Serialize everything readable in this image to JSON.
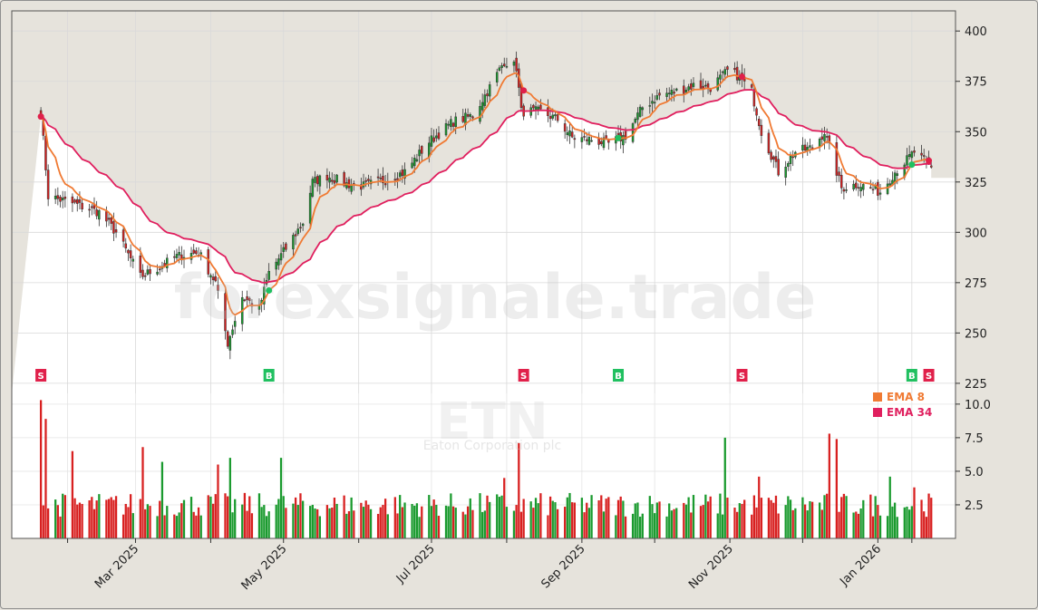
{
  "chart_data": {
    "type": "candlestick",
    "ticker": "ETN",
    "company": "Eaton Corporation plc",
    "watermark": "forexsignale.trade",
    "price_axis": {
      "ticks": [
        225,
        250,
        275,
        300,
        325,
        350,
        375,
        400
      ],
      "ylim": [
        220,
        410
      ]
    },
    "volume_axis": {
      "ticks": [
        "2.5",
        "5.0",
        "7.5",
        "10.0"
      ],
      "values": [
        2.5,
        5.0,
        7.5,
        10.0
      ],
      "ylim": [
        0,
        10.8
      ]
    },
    "x_labels": [
      {
        "label": "Mar 2025",
        "date": "2025-03-01"
      },
      {
        "label": "May 2025",
        "date": "2025-05-01"
      },
      {
        "label": "Jul 2025",
        "date": "2025-07-01"
      },
      {
        "label": "Sep 2025",
        "date": "2025-09-01"
      },
      {
        "label": "Nov 2025",
        "date": "2025-11-01"
      },
      {
        "label": "Jan 2026",
        "date": "2026-01-01"
      }
    ],
    "x_minor_dates": [
      "2025-02-01",
      "2025-04-01",
      "2025-06-01",
      "2025-08-01",
      "2025-10-01",
      "2025-12-01",
      "2026-01-15"
    ],
    "date_range": [
      "2025-01-21",
      "2026-01-23"
    ],
    "last_close": 332,
    "price_path": [
      [
        "2025-01-21",
        360
      ],
      [
        "2025-01-24",
        318
      ],
      [
        "2025-02-04",
        314
      ],
      [
        "2025-02-14",
        310
      ],
      [
        "2025-02-21",
        300
      ],
      [
        "2025-03-03",
        278
      ],
      [
        "2025-03-10",
        282
      ],
      [
        "2025-03-18",
        288
      ],
      [
        "2025-03-27",
        290
      ],
      [
        "2025-04-03",
        275
      ],
      [
        "2025-04-08",
        245
      ],
      [
        "2025-04-14",
        268
      ],
      [
        "2025-04-21",
        262
      ],
      [
        "2025-04-25",
        280
      ],
      [
        "2025-05-02",
        292
      ],
      [
        "2025-05-09",
        305
      ],
      [
        "2025-05-13",
        325
      ],
      [
        "2025-05-19",
        328
      ],
      [
        "2025-05-27",
        324
      ],
      [
        "2025-06-03",
        323
      ],
      [
        "2025-06-12",
        326
      ],
      [
        "2025-06-20",
        330
      ],
      [
        "2025-06-30",
        345
      ],
      [
        "2025-07-10",
        355
      ],
      [
        "2025-07-18",
        358
      ],
      [
        "2025-07-25",
        372
      ],
      [
        "2025-07-31",
        385
      ],
      [
        "2025-08-05",
        382
      ],
      [
        "2025-08-07",
        360
      ],
      [
        "2025-08-15",
        360
      ],
      [
        "2025-08-22",
        356
      ],
      [
        "2025-08-28",
        347
      ],
      [
        "2025-09-05",
        346
      ],
      [
        "2025-09-12",
        344
      ],
      [
        "2025-09-19",
        348
      ],
      [
        "2025-09-26",
        362
      ],
      [
        "2025-10-03",
        368
      ],
      [
        "2025-10-10",
        370
      ],
      [
        "2025-10-17",
        373
      ],
      [
        "2025-10-24",
        372
      ],
      [
        "2025-10-31",
        380
      ],
      [
        "2025-11-04",
        378
      ],
      [
        "2025-11-10",
        370
      ],
      [
        "2025-11-14",
        350
      ],
      [
        "2025-11-21",
        330
      ],
      [
        "2025-11-28",
        340
      ],
      [
        "2025-12-05",
        342
      ],
      [
        "2025-12-10",
        350
      ],
      [
        "2025-12-17",
        322
      ],
      [
        "2025-12-24",
        324
      ],
      [
        "2026-01-02",
        320
      ],
      [
        "2026-01-08",
        330
      ],
      [
        "2026-01-13",
        336
      ],
      [
        "2026-01-16",
        340
      ],
      [
        "2026-01-23",
        332
      ]
    ],
    "volume_spikes": [
      [
        "2025-01-21",
        10.3
      ],
      [
        "2025-01-23",
        8.9
      ],
      [
        "2025-02-03",
        6.5
      ],
      [
        "2025-03-04",
        6.8
      ],
      [
        "2025-03-12",
        5.7
      ],
      [
        "2025-04-04",
        5.5
      ],
      [
        "2025-04-09",
        6.0
      ],
      [
        "2025-04-30",
        6.0
      ],
      [
        "2025-07-31",
        4.5
      ],
      [
        "2025-08-06",
        7.1
      ],
      [
        "2025-10-30",
        7.5
      ],
      [
        "2025-11-13",
        4.6
      ],
      [
        "2025-12-12",
        7.8
      ],
      [
        "2025-12-15",
        7.4
      ],
      [
        "2026-01-06",
        4.6
      ],
      [
        "2026-01-16",
        3.8
      ]
    ],
    "series": [
      {
        "name": "EMA 8",
        "color": "#f07a33"
      },
      {
        "name": "EMA 34",
        "color": "#e01f5e"
      }
    ],
    "signals": [
      {
        "label": "S",
        "date": "2025-01-21",
        "type": "sell"
      },
      {
        "label": "B",
        "date": "2025-04-25",
        "type": "buy"
      },
      {
        "label": "S",
        "date": "2025-08-08",
        "type": "sell"
      },
      {
        "label": "B",
        "date": "2025-09-16",
        "type": "buy"
      },
      {
        "label": "S",
        "date": "2025-11-06",
        "type": "sell"
      },
      {
        "label": "B",
        "date": "2026-01-15",
        "type": "buy"
      },
      {
        "label": "S",
        "date": "2026-01-22",
        "type": "sell"
      }
    ],
    "colors": {
      "up": "#1a9a2e",
      "down": "#d82020",
      "buy": "#20c060",
      "sell": "#e0204a"
    }
  }
}
